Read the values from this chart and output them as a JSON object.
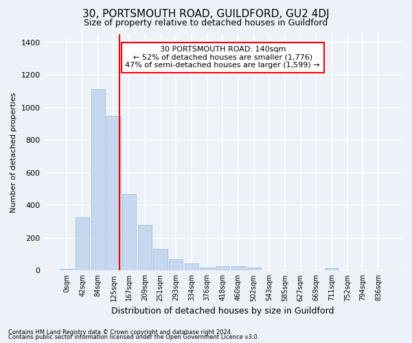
{
  "title": "30, PORTSMOUTH ROAD, GUILDFORD, GU2 4DJ",
  "subtitle": "Size of property relative to detached houses in Guildford",
  "xlabel": "Distribution of detached houses by size in Guildford",
  "ylabel": "Number of detached properties",
  "categories": [
    "0sqm",
    "42sqm",
    "84sqm",
    "125sqm",
    "167sqm",
    "209sqm",
    "251sqm",
    "293sqm",
    "334sqm",
    "376sqm",
    "418sqm",
    "460sqm",
    "502sqm",
    "543sqm",
    "585sqm",
    "627sqm",
    "669sqm",
    "711sqm",
    "752sqm",
    "794sqm",
    "836sqm"
  ],
  "values": [
    10,
    325,
    1115,
    950,
    470,
    280,
    130,
    70,
    45,
    20,
    25,
    25,
    18,
    0,
    0,
    0,
    0,
    12,
    0,
    0,
    0
  ],
  "bar_color": "#c5d8ef",
  "bar_edge_color": "#9bbcd8",
  "background_color": "#edf1f8",
  "grid_color": "#ffffff",
  "vline_color": "red",
  "annotation_text": "30 PORTSMOUTH ROAD: 140sqm\n← 52% of detached houses are smaller (1,776)\n47% of semi-detached houses are larger (1,599) →",
  "annotation_box_color": "white",
  "annotation_box_edge": "red",
  "ylim": [
    0,
    1450
  ],
  "footnote1": "Contains HM Land Registry data © Crown copyright and database right 2024.",
  "footnote2": "Contains public sector information licensed under the Open Government Licence v3.0."
}
